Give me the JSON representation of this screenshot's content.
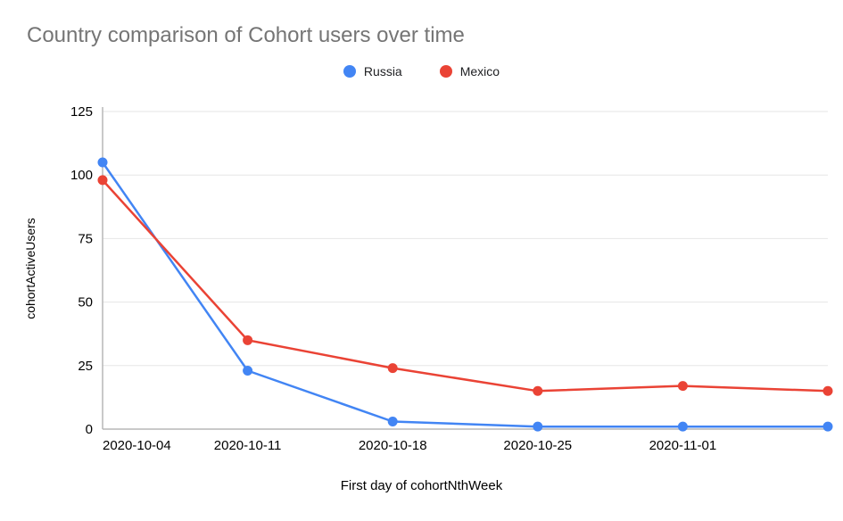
{
  "title": "Country comparison of Cohort users over time",
  "chart_data": {
    "type": "line",
    "title": "Country comparison of Cohort users over time",
    "xlabel": "First day of cohortNthWeek",
    "ylabel": "cohortActiveUsers",
    "categories": [
      "2020-10-04",
      "2020-10-11",
      "2020-10-18",
      "2020-10-25",
      "2020-11-01",
      ""
    ],
    "series": [
      {
        "name": "Russia",
        "color": "#4285F4",
        "values": [
          105,
          23,
          3,
          1,
          1,
          1
        ]
      },
      {
        "name": "Mexico",
        "color": "#EA4335",
        "values": [
          98,
          35,
          24,
          15,
          17,
          15
        ]
      }
    ],
    "ylim": [
      0,
      125
    ],
    "yticks": [
      0,
      25,
      50,
      75,
      100,
      125
    ],
    "grid": "horizontal",
    "legend_position": "top"
  },
  "colors": {
    "title": "#757575",
    "axis_text": "#202124",
    "grid": "#e6e6e6",
    "axis_line": "#b7b7b7"
  }
}
